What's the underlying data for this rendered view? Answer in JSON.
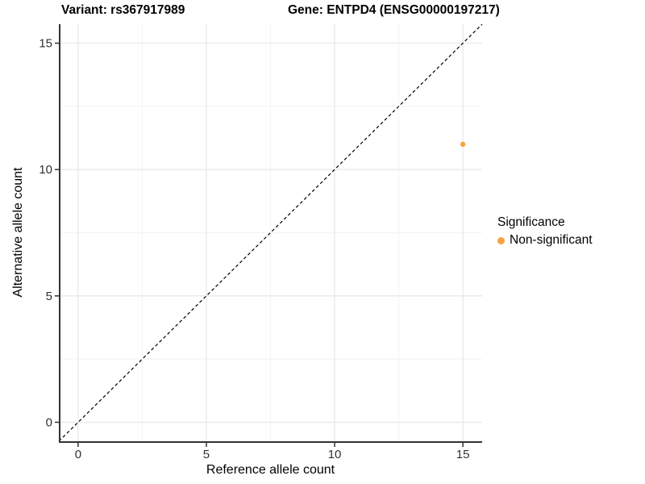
{
  "header": {
    "variant_title": "Variant: rs367917989",
    "gene_title": "Gene: ENTPD4 (ENSG00000197217)"
  },
  "colors": {
    "point_orange": "#F9A242",
    "axis": "#333333",
    "tick_label": "#303030",
    "grid_major": "#E8E8E8",
    "grid_minor": "#F3F3F3",
    "identity_line": "#000000",
    "background": "#FFFFFF"
  },
  "chart_data": {
    "type": "scatter",
    "xlabel": "Reference allele count",
    "ylabel": "Alternative allele count",
    "xlim": [
      -0.75,
      15.75
    ],
    "ylim": [
      -0.75,
      15.75
    ],
    "xticks": [
      0,
      5,
      10,
      15
    ],
    "yticks": [
      0,
      5,
      10,
      15
    ],
    "minor_xticks": [
      2.5,
      7.5,
      12.5
    ],
    "minor_yticks": [
      2.5,
      7.5,
      12.5
    ],
    "grid": true,
    "identity_line": {
      "slope": 1,
      "intercept": 0,
      "style": "dashed"
    },
    "series": [
      {
        "name": "Non-significant",
        "color": "#F9A242",
        "points": [
          {
            "x": 15,
            "y": 11
          }
        ]
      }
    ],
    "legend": {
      "title": "Significance",
      "position": "right",
      "entries": [
        {
          "label": "Non-significant",
          "color": "#F9A242"
        }
      ]
    }
  }
}
